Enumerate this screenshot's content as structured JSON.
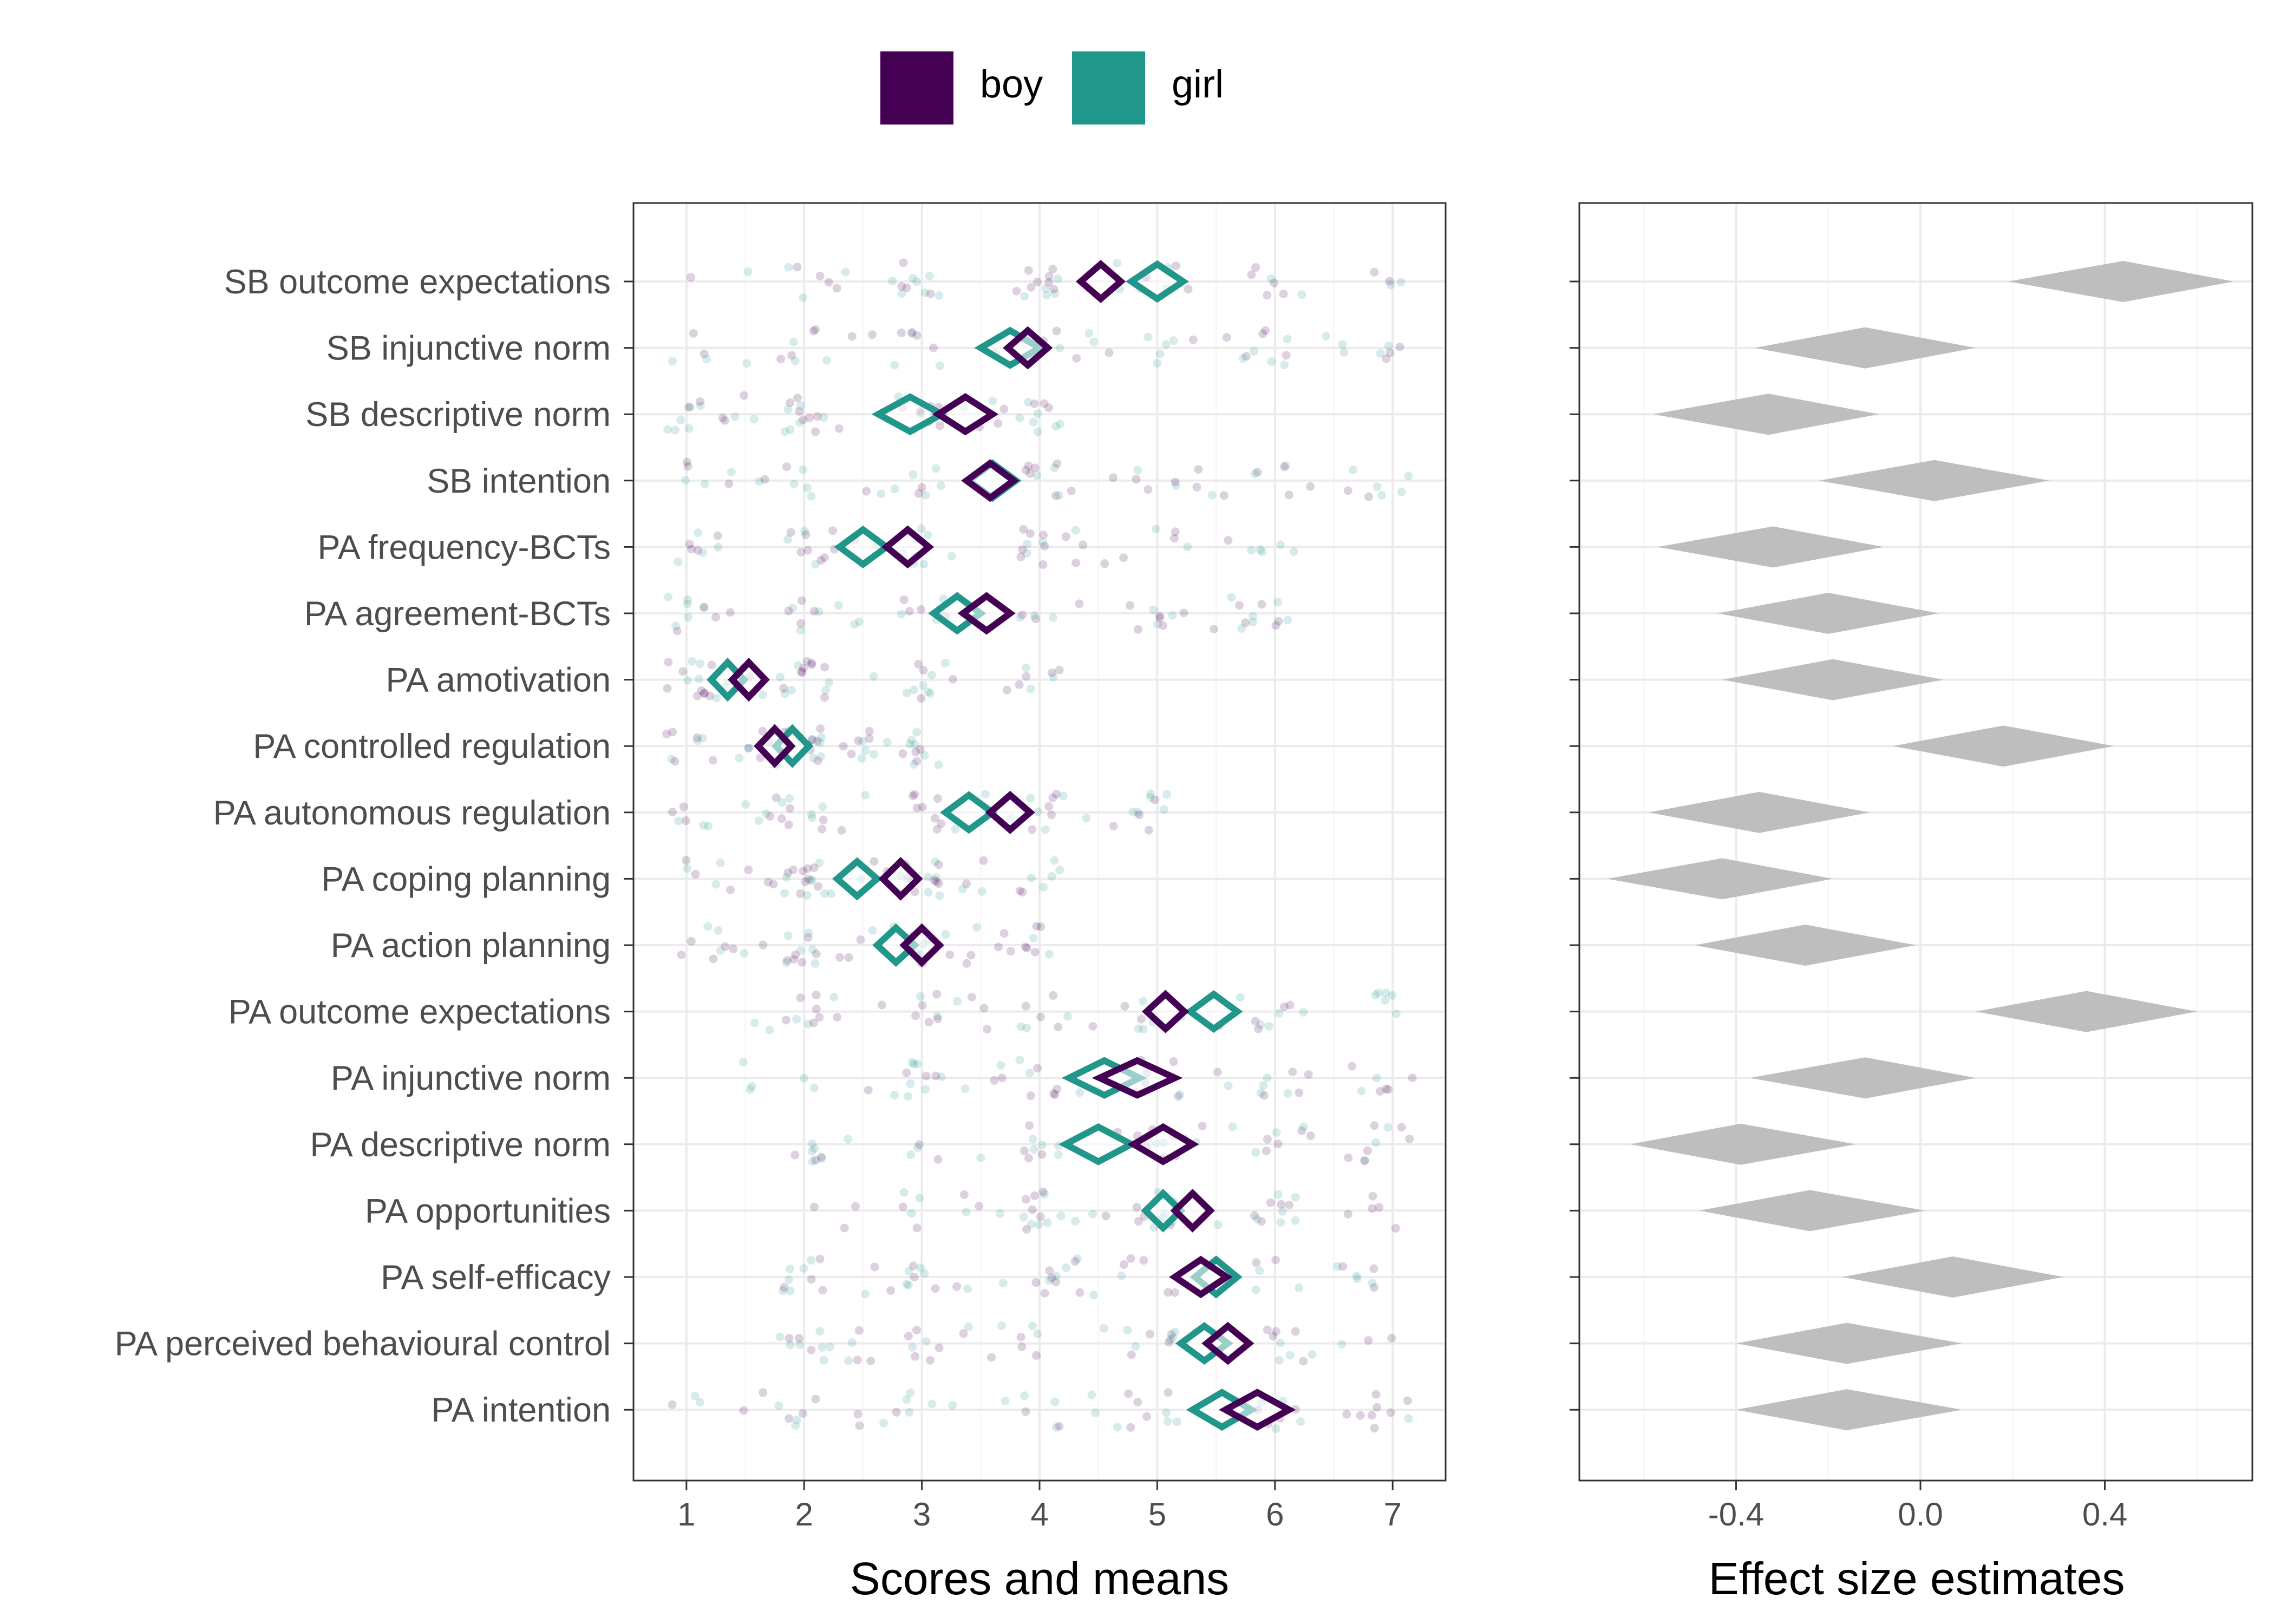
{
  "legend": {
    "items": [
      {
        "label": "boy",
        "color": "#440154"
      },
      {
        "label": "girl",
        "color": "#21968A"
      }
    ]
  },
  "chart_data": [
    {
      "type": "scatter",
      "subtype": "jittered points with mean diamonds",
      "xlabel": "Scores and means",
      "ylabel": "",
      "xlim": [
        0.55,
        7.45
      ],
      "xticks": [
        1,
        2,
        3,
        4,
        5,
        6,
        7
      ],
      "grid": true,
      "legend_position": "top",
      "categories": [
        "SB outcome expectations",
        "SB injunctive norm",
        "SB descriptive norm",
        "SB intention",
        "PA frequency-BCTs",
        "PA agreement-BCTs",
        "PA amotivation",
        "PA controlled regulation",
        "PA autonomous regulation",
        "PA coping planning",
        "PA action planning",
        "PA outcome expectations",
        "PA injunctive norm",
        "PA descriptive norm",
        "PA opportunities",
        "PA self-efficacy",
        "PA perceived behavioural control",
        "PA intention"
      ],
      "series": [
        {
          "name": "boy",
          "color": "#440154",
          "means": [
            4.52,
            3.9,
            3.37,
            3.58,
            2.88,
            3.55,
            1.53,
            1.75,
            3.75,
            2.82,
            3.0,
            5.07,
            4.83,
            5.05,
            5.3,
            5.37,
            5.6,
            5.85
          ],
          "ci_halfwidth": [
            0.17,
            0.17,
            0.23,
            0.2,
            0.18,
            0.2,
            0.14,
            0.14,
            0.17,
            0.15,
            0.15,
            0.16,
            0.32,
            0.25,
            0.15,
            0.22,
            0.18,
            0.27
          ]
        },
        {
          "name": "girl",
          "color": "#21968A",
          "means": [
            5.0,
            3.75,
            2.9,
            3.6,
            2.5,
            3.3,
            1.35,
            1.9,
            3.4,
            2.45,
            2.78,
            5.48,
            4.55,
            4.5,
            5.05,
            5.5,
            5.4,
            5.55
          ],
          "ci_halfwidth": [
            0.22,
            0.25,
            0.27,
            0.2,
            0.2,
            0.2,
            0.14,
            0.14,
            0.2,
            0.17,
            0.16,
            0.2,
            0.3,
            0.28,
            0.15,
            0.18,
            0.2,
            0.25
          ]
        }
      ],
      "point_ranges": [
        [
          1,
          7
        ],
        [
          1,
          7
        ],
        [
          1,
          4.1
        ],
        [
          1,
          7
        ],
        [
          1,
          6
        ],
        [
          1,
          6
        ],
        [
          1,
          4
        ],
        [
          1,
          3
        ],
        [
          1,
          5.1
        ],
        [
          1,
          4.1
        ],
        [
          1,
          4.1
        ],
        [
          1.5,
          7
        ],
        [
          1,
          7
        ],
        [
          1.5,
          7
        ],
        [
          1.5,
          7
        ],
        [
          1.5,
          7
        ],
        [
          1.5,
          7
        ],
        [
          1,
          7
        ]
      ]
    },
    {
      "type": "scatter",
      "subtype": "effect size diamonds",
      "xlabel": "Effect size estimates",
      "ylabel": "",
      "xlim": [
        -0.74,
        0.72
      ],
      "xticks": [
        -0.4,
        0.0,
        0.4
      ],
      "xtick_labels": [
        "-0.4",
        "0.0",
        "0.4"
      ],
      "grid": true,
      "color": "#BEBEBE",
      "categories_same_as_left": true,
      "estimates": [
        0.44,
        -0.12,
        -0.33,
        0.03,
        -0.32,
        -0.2,
        -0.19,
        0.18,
        -0.35,
        -0.43,
        -0.25,
        0.36,
        -0.12,
        -0.39,
        -0.24,
        0.07,
        -0.16,
        -0.16
      ],
      "ci": [
        [
          0.19,
          0.68
        ],
        [
          -0.36,
          0.12
        ],
        [
          -0.58,
          -0.09
        ],
        [
          -0.22,
          0.28
        ],
        [
          -0.57,
          -0.08
        ],
        [
          -0.44,
          0.04
        ],
        [
          -0.43,
          0.05
        ],
        [
          -0.06,
          0.42
        ],
        [
          -0.59,
          -0.11
        ],
        [
          -0.68,
          -0.19
        ],
        [
          -0.49,
          -0.01
        ],
        [
          0.12,
          0.6
        ],
        [
          -0.37,
          0.12
        ],
        [
          -0.63,
          -0.14
        ],
        [
          -0.48,
          0.01
        ],
        [
          -0.17,
          0.31
        ],
        [
          -0.4,
          0.09
        ],
        [
          -0.4,
          0.09
        ]
      ]
    }
  ]
}
